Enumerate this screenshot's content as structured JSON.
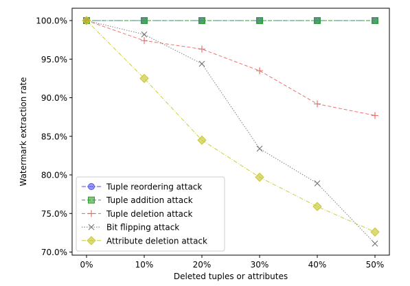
{
  "chart_data": {
    "type": "line",
    "xlabel": "Deleted tuples or attributes",
    "ylabel": "Watermark extraction rate",
    "categories": [
      "0%",
      "10%",
      "20%",
      "30%",
      "40%",
      "50%"
    ],
    "x": [
      0,
      10,
      20,
      30,
      40,
      50
    ],
    "xlim": [
      -2.5,
      52.5
    ],
    "ylim": [
      69.6,
      101.6
    ],
    "yticks": [
      70,
      75,
      80,
      85,
      90,
      95,
      100
    ],
    "ytick_labels": [
      "70.0%",
      "75.0%",
      "80.0%",
      "85.0%",
      "90.0%",
      "95.0%",
      "100.0%"
    ],
    "grid": false,
    "legend_position": "lower-left",
    "series": [
      {
        "name": "Tuple reordering attack",
        "values": [
          100,
          100,
          100,
          100,
          100,
          100
        ],
        "color": "#4a4af0",
        "marker": "circle",
        "dash": "dashdot"
      },
      {
        "name": "Tuple addition attack",
        "values": [
          100,
          100,
          100,
          100,
          100,
          100
        ],
        "color": "#2ca02c",
        "marker": "square",
        "dash": "dashed"
      },
      {
        "name": "Tuple deletion attack",
        "values": [
          100,
          97.4,
          96.3,
          93.5,
          89.2,
          87.7
        ],
        "color": "#f0605a",
        "marker": "plus",
        "dash": "dashed"
      },
      {
        "name": "Bit flipping attack",
        "values": [
          100,
          98.2,
          94.4,
          83.4,
          78.9,
          71.1
        ],
        "color": "#707070",
        "marker": "x",
        "dash": "dotted"
      },
      {
        "name": "Attribute deletion attack",
        "values": [
          100,
          92.5,
          84.5,
          79.7,
          75.9,
          72.6
        ],
        "color": "#c8c832",
        "marker": "diamond",
        "dash": "dashdot"
      }
    ]
  }
}
